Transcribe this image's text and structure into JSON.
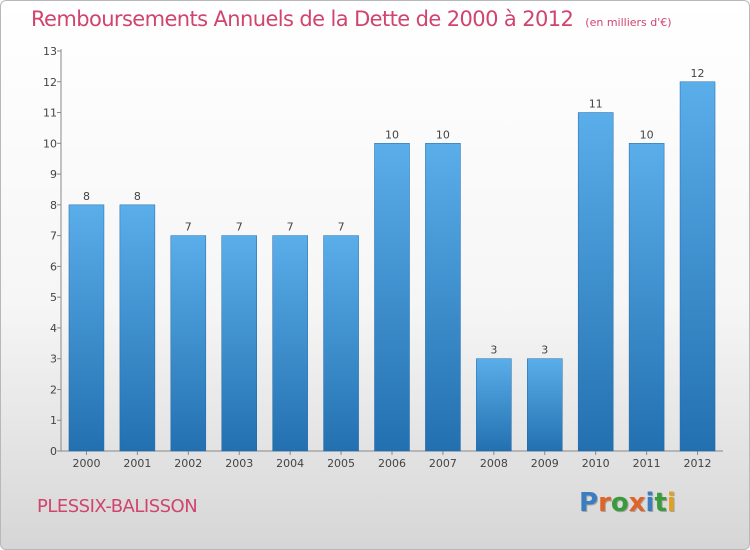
{
  "header": {
    "title": "Remboursements Annuels de la Dette de 2000 à 2012",
    "subtitle": "(en milliers d'€)"
  },
  "footer": {
    "commune": "PLESSIX-BALISSON",
    "logo_text": "Proxiti",
    "logo_colors": [
      "#3a7ec0",
      "#e0642a",
      "#3a9a3c",
      "#e0642a",
      "#3a7ec0",
      "#3a9a3c",
      "#e0a020"
    ]
  },
  "chart_data": {
    "type": "bar",
    "title": "Remboursements Annuels de la Dette de 2000 à 2012",
    "subtitle": "(en milliers d'€)",
    "categories": [
      "2000",
      "2001",
      "2002",
      "2003",
      "2004",
      "2005",
      "2006",
      "2007",
      "2008",
      "2009",
      "2010",
      "2011",
      "2012"
    ],
    "values": [
      8,
      8,
      7,
      7,
      7,
      7,
      10,
      10,
      3,
      3,
      11,
      10,
      12
    ],
    "ylim": [
      0,
      13
    ],
    "yticks": [
      0,
      1,
      2,
      3,
      4,
      5,
      6,
      7,
      8,
      9,
      10,
      11,
      12,
      13
    ],
    "grid": false,
    "bar_color_top": "#5aaeea",
    "bar_color_bottom": "#2370b0",
    "axis_color": "#888888",
    "label_color": "#444444"
  }
}
